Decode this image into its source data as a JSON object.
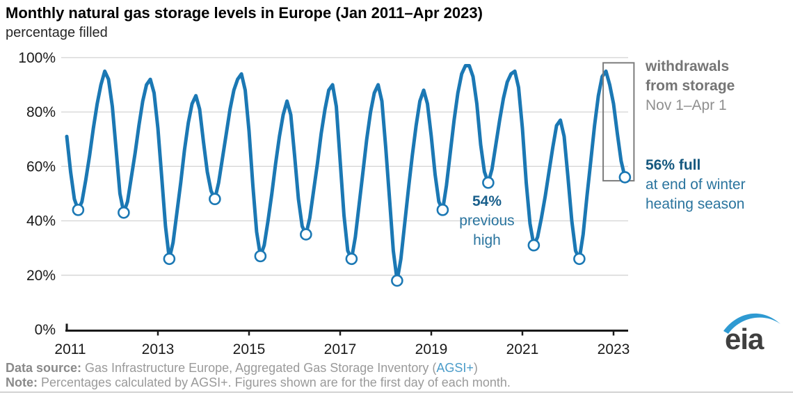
{
  "title": "Monthly natural gas storage levels in Europe (Jan 2011–Apr 2023)",
  "subtitle": "percentage filled",
  "chart_data": {
    "type": "line",
    "series_name": "natural gas storage percentage filled",
    "start_month": "2011-01",
    "end_month": "2023-04",
    "x_tick_years": [
      2011,
      2013,
      2015,
      2017,
      2019,
      2021,
      2023
    ],
    "y_ticks": [
      0,
      20,
      40,
      60,
      80,
      100
    ],
    "ylim": [
      0,
      100
    ],
    "grid": true,
    "line_color": "#1b78b4",
    "values": [
      71,
      58,
      48,
      44,
      47,
      55,
      64,
      74,
      83,
      90,
      95,
      92,
      82,
      66,
      50,
      43,
      47,
      56,
      65,
      75,
      84,
      90,
      92,
      87,
      74,
      56,
      38,
      26,
      32,
      43,
      54,
      66,
      76,
      83,
      86,
      81,
      69,
      58,
      51,
      48,
      54,
      63,
      72,
      81,
      88,
      92,
      94,
      88,
      73,
      53,
      36,
      27,
      31,
      40,
      50,
      61,
      71,
      79,
      84,
      79,
      64,
      48,
      38,
      35,
      41,
      51,
      61,
      72,
      81,
      88,
      90,
      82,
      62,
      42,
      29,
      26,
      34,
      46,
      58,
      70,
      80,
      87,
      90,
      84,
      67,
      48,
      29,
      18,
      26,
      39,
      52,
      64,
      75,
      84,
      88,
      83,
      71,
      57,
      47,
      44,
      53,
      65,
      77,
      87,
      94,
      97,
      97,
      93,
      83,
      68,
      58,
      54,
      59,
      68,
      77,
      85,
      91,
      94,
      95,
      89,
      74,
      54,
      39,
      31,
      34,
      41,
      49,
      58,
      67,
      75,
      77,
      71,
      56,
      40,
      29,
      26,
      35,
      49,
      62,
      75,
      86,
      93,
      95,
      90,
      83,
      72,
      62,
      56
    ],
    "april_markers": [
      {
        "month": "Apr 2011",
        "value": 44
      },
      {
        "month": "Apr 2012",
        "value": 43
      },
      {
        "month": "Apr 2013",
        "value": 26
      },
      {
        "month": "Apr 2014",
        "value": 48
      },
      {
        "month": "Apr 2015",
        "value": 27
      },
      {
        "month": "Apr 2016",
        "value": 35
      },
      {
        "month": "Apr 2017",
        "value": 26
      },
      {
        "month": "Apr 2018",
        "value": 18
      },
      {
        "month": "Apr 2019",
        "value": 44
      },
      {
        "month": "Apr 2020",
        "value": 54
      },
      {
        "month": "Apr 2021",
        "value": 31
      },
      {
        "month": "Apr 2022",
        "value": 26
      },
      {
        "month": "Apr 2023",
        "value": 56
      }
    ],
    "highlight_box_months": {
      "from": "Nov 2022",
      "to": "Apr 2023"
    }
  },
  "annotations": {
    "withdrawals": {
      "line1": "withdrawals",
      "line2": "from storage",
      "line3": "Nov 1–Apr 1"
    },
    "current": {
      "bold": "56% full",
      "line2": "at end of winter",
      "line3": "heating season"
    },
    "previous": {
      "bold": "54%",
      "line2": "previous",
      "line3": "high"
    }
  },
  "footer": {
    "datasource_label": "Data source:",
    "datasource_text": " Gas Infrastructure Europe, Aggregated Gas Storage Inventory (",
    "datasource_link": "AGSI+",
    "datasource_close": ")",
    "note_label": "Note:",
    "note_text": " Percentages calculated by AGSI+. Figures shown are for the first day of each month."
  },
  "logo_text": "eia",
  "colors": {
    "line": "#1b78b4",
    "grid": "#d7d7d7",
    "axis": "#1a1a1a",
    "box": "#7c7c7c",
    "gray_annotation": "#757575",
    "blue_annotation": "#15587f",
    "footer_text": "#9a9a9a",
    "link": "#4b9cc9",
    "logo_swoosh": "#2e9ad2",
    "logo_text": "#3f3f3f"
  }
}
